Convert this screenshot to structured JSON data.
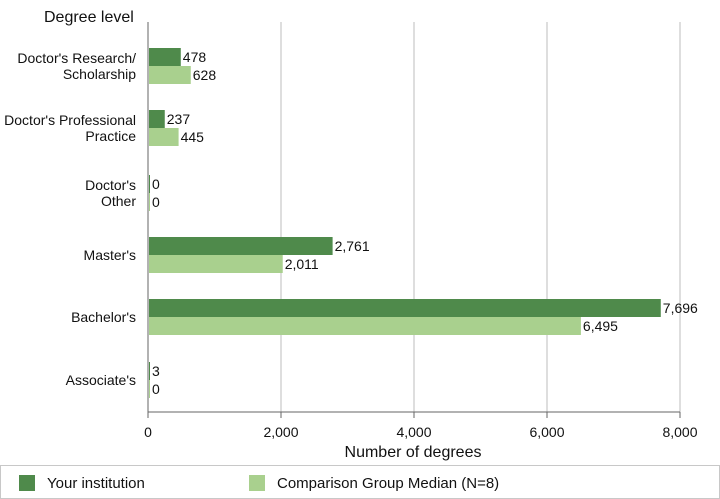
{
  "colors": {
    "background": "#ffffff",
    "grid": "#d3d3d3",
    "axis": "#666666",
    "text": "#111111",
    "institution": "#4f8a4b",
    "comparison": "#a9d08e",
    "legend_border": "#c8c8c8"
  },
  "chart_data": {
    "type": "bar",
    "orientation": "horizontal",
    "title": "",
    "categories": [
      [
        "Doctor's Research/",
        "Scholarship"
      ],
      [
        "Doctor's Professional",
        "Practice"
      ],
      [
        "Doctor's",
        "Other"
      ],
      [
        "Master's"
      ],
      [
        "Bachelor's"
      ],
      [
        "Associate's"
      ]
    ],
    "series": [
      {
        "name": "Your institution",
        "values": [
          478,
          237,
          0,
          2761,
          7696,
          3
        ],
        "labels": [
          "478",
          "237",
          "0",
          "2,761",
          "7,696",
          "3"
        ]
      },
      {
        "name": "Comparison Group Median (N=8)",
        "values": [
          628,
          445,
          0,
          2011,
          6495,
          0
        ],
        "labels": [
          "628",
          "445",
          "0",
          "2,011",
          "6,495",
          "0"
        ]
      }
    ],
    "xlabel": "Number of degrees",
    "ylabel": "Degree level",
    "xlim": [
      0,
      8000
    ],
    "xticks": [
      0,
      2000,
      4000,
      6000,
      8000
    ],
    "xtick_labels": [
      "0",
      "2,000",
      "4,000",
      "6,000",
      "8,000"
    ],
    "grid": true,
    "legend": {
      "position": "bottom",
      "items": [
        "Your institution",
        "Comparison Group Median (N=8)"
      ]
    }
  }
}
